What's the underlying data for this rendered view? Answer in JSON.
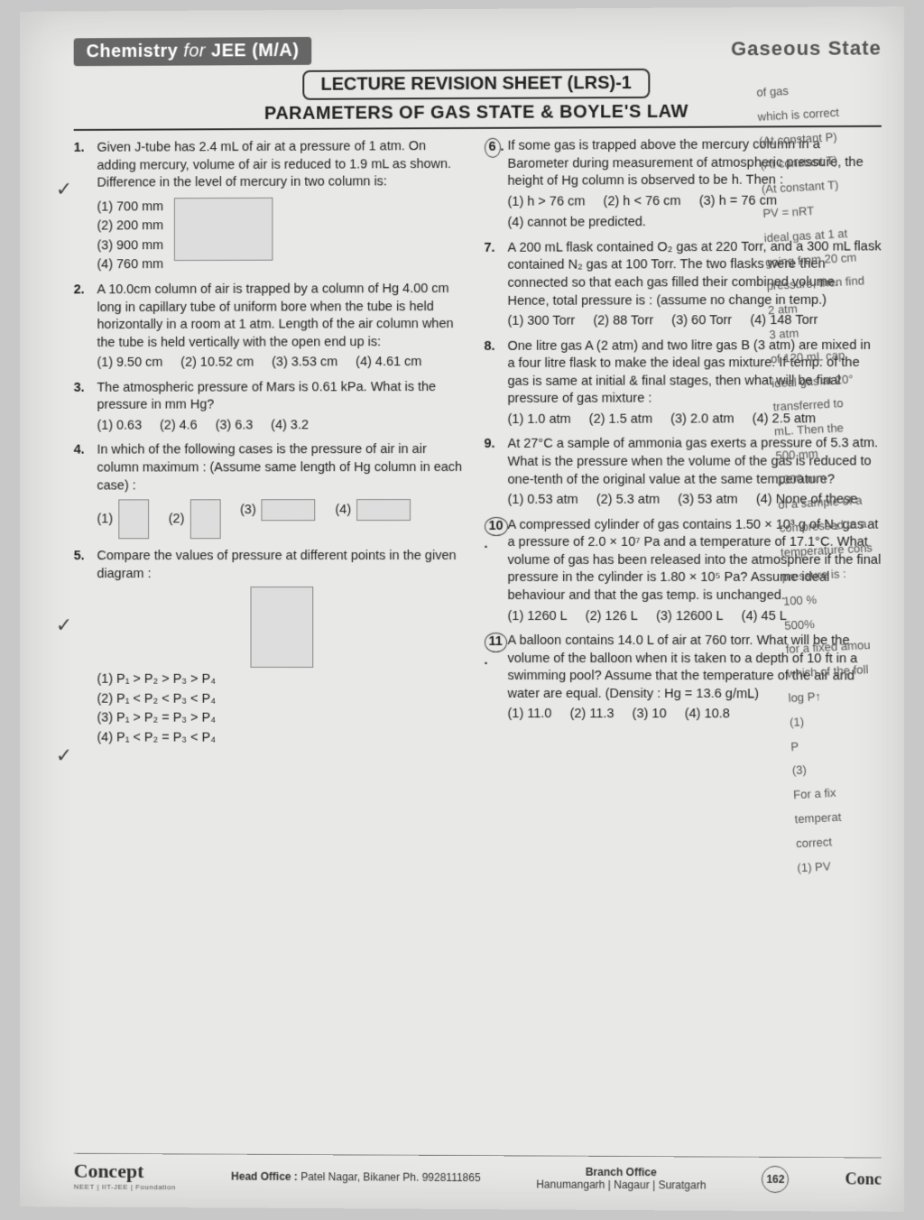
{
  "header": {
    "subject": "Chemistry",
    "for": "for",
    "exam": "JEE (M/A)",
    "topic": "Gaseous State"
  },
  "sheet_title": "LECTURE REVISION SHEET (LRS)-1",
  "section_title": "PARAMETERS OF GAS STATE & BOYLE'S LAW",
  "side_notes": {
    "l1": "of gas",
    "l2": "which is correct",
    "l3": "(At constant P)",
    "l4": "(At constant T)",
    "l5": "(At constant T)",
    "l6": "PV = nRT",
    "l7": "ideal gas at 1 at",
    "l8": "going from 20 cm",
    "l9": "pressure, then find",
    "l10": "2 atm",
    "l11": "3 atm",
    "l12": "of 120 mL cap",
    "l13": "ideal gas at 20°",
    "l14": "transferred to",
    "l15": "mL. Then the",
    "l16": "500 mm",
    "l17": "1000 mm",
    "l18": "of a sample of a",
    "l19": "compressed to a",
    "l20": "temperature cons",
    "l21": "pressure is :",
    "l22": "100 %",
    "l23": "500%",
    "l24": "for a fixed amou",
    "l25": "which of the foll",
    "l26": "log P↑",
    "l27": "(1)",
    "l28": "P",
    "l29": "(3)",
    "l30": "For a fix",
    "l31": "temperat",
    "l32": "correct",
    "l33": "(1) PV"
  },
  "questions_left": [
    {
      "n": "1.",
      "text": "Given J-tube has 2.4 mL of air at a pressure of 1 atm. On adding mercury, volume of air is reduced to 1.9 mL as shown. Difference in the level of mercury in two column is:",
      "opts": [
        "(1) 700 mm",
        "(2) 200 mm",
        "(3) 900 mm",
        "(4) 760 mm"
      ],
      "vertical": true,
      "diagram": "jtube"
    },
    {
      "n": "2.",
      "text": "A 10.0cm column of air is trapped by a column of Hg 4.00 cm long in capillary tube of uniform bore when the tube is held horizontally in a room at 1 atm. Length of the air column when the tube is held vertically with the open end up is:",
      "opts": [
        "(1) 9.50 cm",
        "(2) 10.52 cm",
        "(3) 3.53 cm",
        "(4) 4.61 cm"
      ]
    },
    {
      "n": "3.",
      "text": "The atmospheric pressure of Mars is 0.61 kPa. What is the pressure in mm Hg?",
      "opts": [
        "(1) 0.63",
        "(2) 4.6",
        "(3) 6.3",
        "(4) 3.2"
      ]
    },
    {
      "n": "4.",
      "text": "In which of the following cases is the pressure of air in air column maximum : (Assume same length of Hg column in each case) :",
      "opts": [
        "(1)",
        "(2)",
        "(3)",
        "(4)"
      ],
      "diagram_opts": true
    },
    {
      "n": "5.",
      "text": "Compare the values of pressure at different points in the given diagram :",
      "opts": [
        "(1) P₁ > P₂ > P₃ > P₄",
        "(2) P₁ < P₂ < P₃ < P₄",
        "(3) P₁ > P₂ = P₃ > P₄",
        "(4) P₁ < P₂ = P₃ < P₄"
      ],
      "vertical": true,
      "diagram": "jbox"
    }
  ],
  "questions_right": [
    {
      "n": "6.",
      "text": "If some gas is trapped above the mercury column in a Barometer during measurement of atmospheric pressure, the height of Hg column is observed to be h. Then :",
      "opts": [
        "(1) h > 76 cm",
        "(2) h < 76 cm",
        "(3) h = 76 cm",
        "(4) cannot be predicted."
      ],
      "circled": true
    },
    {
      "n": "7.",
      "text": "A 200 mL flask contained O₂ gas at 220 Torr, and a 300 mL flask contained N₂ gas at 100 Torr. The two flasks were then connected so that each gas filled their combined volume. Hence, total pressure is : (assume no change in temp.)",
      "opts": [
        "(1) 300 Torr",
        "(2) 88 Torr",
        "(3) 60 Torr",
        "(4) 148 Torr"
      ]
    },
    {
      "n": "8.",
      "text": "One litre gas A (2 atm) and two litre gas B (3 atm) are mixed in a four litre flask to make the ideal gas mixture. If temp. of the gas is same at initial & final stages, then what will be final pressure of gas mixture :",
      "opts": [
        "(1) 1.0 atm",
        "(2) 1.5 atm",
        "(3) 2.0 atm",
        "(4) 2.5 atm"
      ]
    },
    {
      "n": "9.",
      "text": "At 27°C a sample of ammonia gas exerts a pressure of 5.3 atm. What is the pressure when the volume of the gas is reduced to one-tenth of the original value at the same temperature?",
      "opts": [
        "(1) 0.53 atm",
        "(2) 5.3 atm",
        "(3) 53 atm",
        "(4) None of these"
      ]
    },
    {
      "n": "10.",
      "text": "A compressed cylinder of gas contains 1.50 × 10³ g of N₂ gas at a pressure of 2.0 × 10⁷ Pa and a temperature of 17.1°C. What volume of gas has been released into the atmosphere if the final pressure in the cylinder is 1.80 × 10⁵ Pa? Assume ideal behaviour and that the gas temp. is unchanged.",
      "opts": [
        "(1) 1260 L",
        "(2) 126 L",
        "(3) 12600 L",
        "(4) 45 L"
      ],
      "circled": true
    },
    {
      "n": "11.",
      "text": "A balloon contains 14.0 L of air at 760 torr. What will be the volume of the balloon when it is taken to a depth of 10 ft in a swimming pool? Assume that the temperature of the air and water are equal. (Density : Hg = 13.6 g/mL)",
      "opts": [
        "(1) 11.0",
        "(2) 11.3",
        "(3) 10",
        "(4) 10.8"
      ],
      "circled": true
    }
  ],
  "footer": {
    "logo": "Concept",
    "logosub": "NEET | IIT-JEE | Foundation",
    "head": "Head Office :",
    "head_addr": "Patel Nagar, Bikaner Ph. 9928111865",
    "branch": "Branch Office",
    "branch_addr": "Hanumangarh | Nagaur | Suratgarh",
    "page": "162",
    "rlogo": "Conc"
  }
}
